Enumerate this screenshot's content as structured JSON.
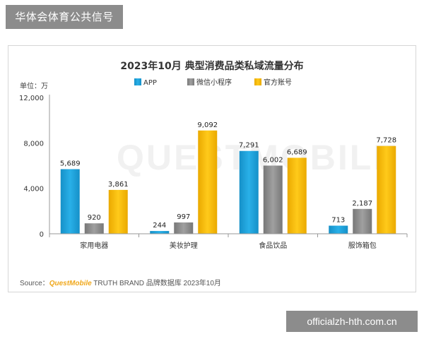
{
  "header": {
    "account_name": "华体会体育公共信号"
  },
  "footer": {
    "source_label": "Source：",
    "source_brand": "QuestMobile",
    "source_rest": " TRUTH BRAND 品牌数据库 2023年10月",
    "watermark_url": "officialzh-hth.com.cn"
  },
  "watermark": {
    "text": "QUESTMOBILE"
  },
  "colors": {
    "APP": "#1aa0d8",
    "微信小程序": "#8c8c8c",
    "官方账号": "#f7b800",
    "axis": "#999999",
    "grid": "#eeeeee"
  },
  "chart_data": {
    "type": "bar",
    "title": "2023年10月 典型消费品类私域流量分布",
    "unit_label": "单位：万",
    "categories": [
      "家用电器",
      "美妆护理",
      "食品饮品",
      "服饰箱包"
    ],
    "series": [
      {
        "name": "APP",
        "values": [
          5689,
          244,
          7291,
          713
        ],
        "labels": [
          "5,689",
          "244",
          "7,291",
          "713"
        ]
      },
      {
        "name": "微信小程序",
        "values": [
          920,
          997,
          6002,
          2187
        ],
        "labels": [
          "920",
          "997",
          "6,002",
          "2,187"
        ]
      },
      {
        "name": "官方账号",
        "values": [
          3861,
          9092,
          6689,
          7728
        ],
        "labels": [
          "3,861",
          "9,092",
          "6,689",
          "7,728"
        ]
      }
    ],
    "ylim": [
      0,
      12000
    ],
    "yticks": [
      0,
      4000,
      8000,
      12000
    ],
    "ytick_labels": [
      "0",
      "4,000",
      "8,000",
      "12,000"
    ],
    "legend_position": "top-center",
    "grid": false
  }
}
